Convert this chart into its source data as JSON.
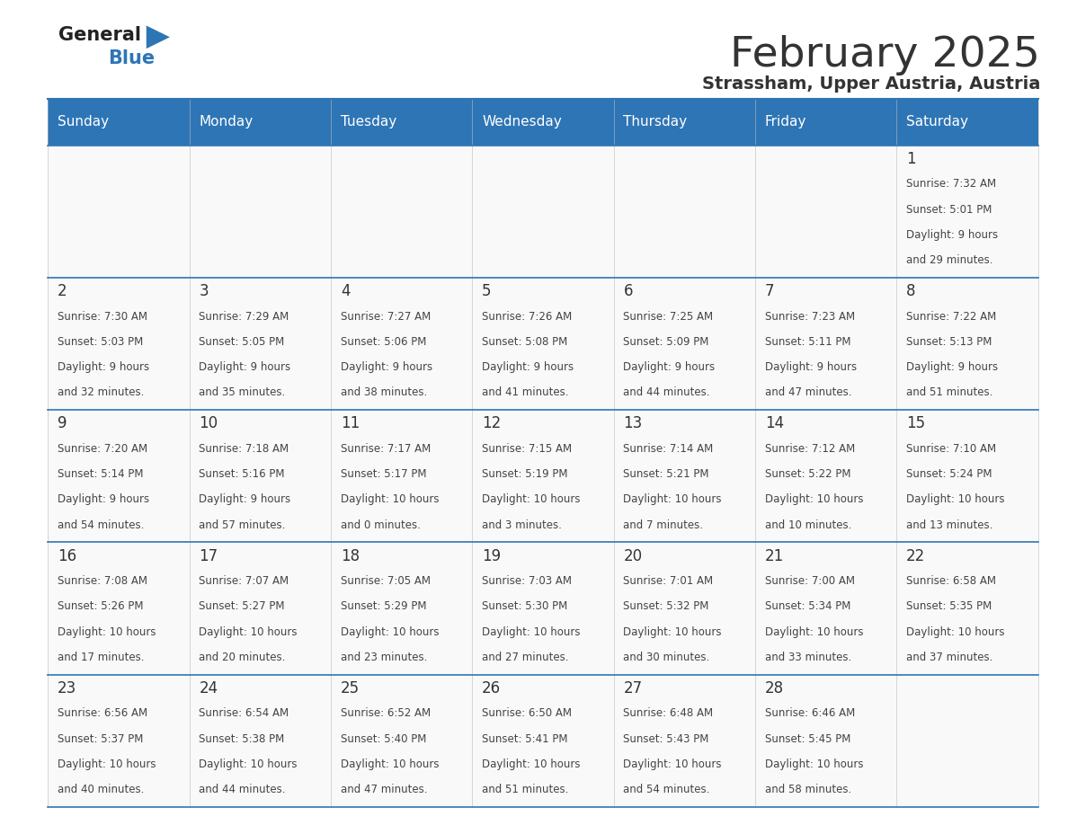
{
  "title": "February 2025",
  "subtitle": "Strassham, Upper Austria, Austria",
  "days_of_week": [
    "Sunday",
    "Monday",
    "Tuesday",
    "Wednesday",
    "Thursday",
    "Friday",
    "Saturday"
  ],
  "header_bg": "#2e75b6",
  "header_text": "#ffffff",
  "cell_bg": "#f9f9f9",
  "border_color": "#2e75b6",
  "text_color": "#333333",
  "day_num_color": "#333333",
  "info_text_color": "#444444",
  "logo_general_color": "#222222",
  "logo_blue_color": "#2e75b6",
  "logo_triangle_color": "#2e75b6",
  "calendar": [
    [
      {
        "day": null
      },
      {
        "day": null
      },
      {
        "day": null
      },
      {
        "day": null
      },
      {
        "day": null
      },
      {
        "day": null
      },
      {
        "day": 1,
        "sunrise": "7:32 AM",
        "sunset": "5:01 PM",
        "daylight": "9 hours and 29 minutes."
      }
    ],
    [
      {
        "day": 2,
        "sunrise": "7:30 AM",
        "sunset": "5:03 PM",
        "daylight": "9 hours and 32 minutes."
      },
      {
        "day": 3,
        "sunrise": "7:29 AM",
        "sunset": "5:05 PM",
        "daylight": "9 hours and 35 minutes."
      },
      {
        "day": 4,
        "sunrise": "7:27 AM",
        "sunset": "5:06 PM",
        "daylight": "9 hours and 38 minutes."
      },
      {
        "day": 5,
        "sunrise": "7:26 AM",
        "sunset": "5:08 PM",
        "daylight": "9 hours and 41 minutes."
      },
      {
        "day": 6,
        "sunrise": "7:25 AM",
        "sunset": "5:09 PM",
        "daylight": "9 hours and 44 minutes."
      },
      {
        "day": 7,
        "sunrise": "7:23 AM",
        "sunset": "5:11 PM",
        "daylight": "9 hours and 47 minutes."
      },
      {
        "day": 8,
        "sunrise": "7:22 AM",
        "sunset": "5:13 PM",
        "daylight": "9 hours and 51 minutes."
      }
    ],
    [
      {
        "day": 9,
        "sunrise": "7:20 AM",
        "sunset": "5:14 PM",
        "daylight": "9 hours and 54 minutes."
      },
      {
        "day": 10,
        "sunrise": "7:18 AM",
        "sunset": "5:16 PM",
        "daylight": "9 hours and 57 minutes."
      },
      {
        "day": 11,
        "sunrise": "7:17 AM",
        "sunset": "5:17 PM",
        "daylight": "10 hours and 0 minutes."
      },
      {
        "day": 12,
        "sunrise": "7:15 AM",
        "sunset": "5:19 PM",
        "daylight": "10 hours and 3 minutes."
      },
      {
        "day": 13,
        "sunrise": "7:14 AM",
        "sunset": "5:21 PM",
        "daylight": "10 hours and 7 minutes."
      },
      {
        "day": 14,
        "sunrise": "7:12 AM",
        "sunset": "5:22 PM",
        "daylight": "10 hours and 10 minutes."
      },
      {
        "day": 15,
        "sunrise": "7:10 AM",
        "sunset": "5:24 PM",
        "daylight": "10 hours and 13 minutes."
      }
    ],
    [
      {
        "day": 16,
        "sunrise": "7:08 AM",
        "sunset": "5:26 PM",
        "daylight": "10 hours and 17 minutes."
      },
      {
        "day": 17,
        "sunrise": "7:07 AM",
        "sunset": "5:27 PM",
        "daylight": "10 hours and 20 minutes."
      },
      {
        "day": 18,
        "sunrise": "7:05 AM",
        "sunset": "5:29 PM",
        "daylight": "10 hours and 23 minutes."
      },
      {
        "day": 19,
        "sunrise": "7:03 AM",
        "sunset": "5:30 PM",
        "daylight": "10 hours and 27 minutes."
      },
      {
        "day": 20,
        "sunrise": "7:01 AM",
        "sunset": "5:32 PM",
        "daylight": "10 hours and 30 minutes."
      },
      {
        "day": 21,
        "sunrise": "7:00 AM",
        "sunset": "5:34 PM",
        "daylight": "10 hours and 33 minutes."
      },
      {
        "day": 22,
        "sunrise": "6:58 AM",
        "sunset": "5:35 PM",
        "daylight": "10 hours and 37 minutes."
      }
    ],
    [
      {
        "day": 23,
        "sunrise": "6:56 AM",
        "sunset": "5:37 PM",
        "daylight": "10 hours and 40 minutes."
      },
      {
        "day": 24,
        "sunrise": "6:54 AM",
        "sunset": "5:38 PM",
        "daylight": "10 hours and 44 minutes."
      },
      {
        "day": 25,
        "sunrise": "6:52 AM",
        "sunset": "5:40 PM",
        "daylight": "10 hours and 47 minutes."
      },
      {
        "day": 26,
        "sunrise": "6:50 AM",
        "sunset": "5:41 PM",
        "daylight": "10 hours and 51 minutes."
      },
      {
        "day": 27,
        "sunrise": "6:48 AM",
        "sunset": "5:43 PM",
        "daylight": "10 hours and 54 minutes."
      },
      {
        "day": 28,
        "sunrise": "6:46 AM",
        "sunset": "5:45 PM",
        "daylight": "10 hours and 58 minutes."
      },
      {
        "day": null
      }
    ]
  ]
}
